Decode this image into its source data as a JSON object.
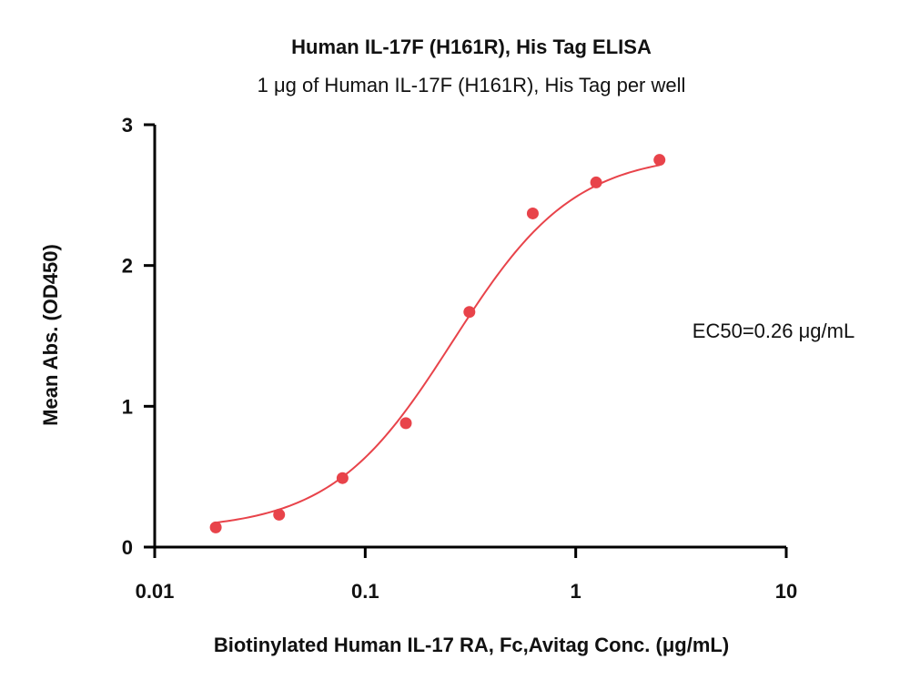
{
  "chart_data": {
    "type": "scatter",
    "title": "Human IL-17F (H161R), His Tag ELISA",
    "subtitle": "1 μg of Human IL-17F (H161R), His Tag per well",
    "xlabel": "Biotinylated Human IL-17 RA, Fc,Avitag Conc. (μg/mL)",
    "ylabel": "Mean Abs. (OD450)",
    "xscale": "log",
    "xlim": [
      0.01,
      10
    ],
    "ylim": [
      0,
      3
    ],
    "xticks": [
      0.01,
      0.1,
      1,
      10
    ],
    "xtick_labels": [
      "0.01",
      "0.1",
      "1",
      "10"
    ],
    "yticks": [
      0,
      1,
      2,
      3
    ],
    "ytick_labels": [
      "0",
      "1",
      "2",
      "3"
    ],
    "grid": false,
    "annotation": "EC50=0.26 μg/mL",
    "colors": {
      "series": "#e8434a",
      "axis": "#000000"
    },
    "series": [
      {
        "x": [
          0.0195,
          0.039,
          0.078,
          0.156,
          0.3125,
          0.625,
          1.25,
          2.5
        ],
        "y": [
          0.14,
          0.23,
          0.49,
          0.88,
          1.67,
          2.37,
          2.59,
          2.75
        ]
      }
    ],
    "fit": {
      "model": "4PL",
      "bottom": 0.12,
      "top": 2.8,
      "ec50": 0.26,
      "hill": 1.5,
      "x_range": [
        0.0195,
        2.5
      ]
    }
  }
}
